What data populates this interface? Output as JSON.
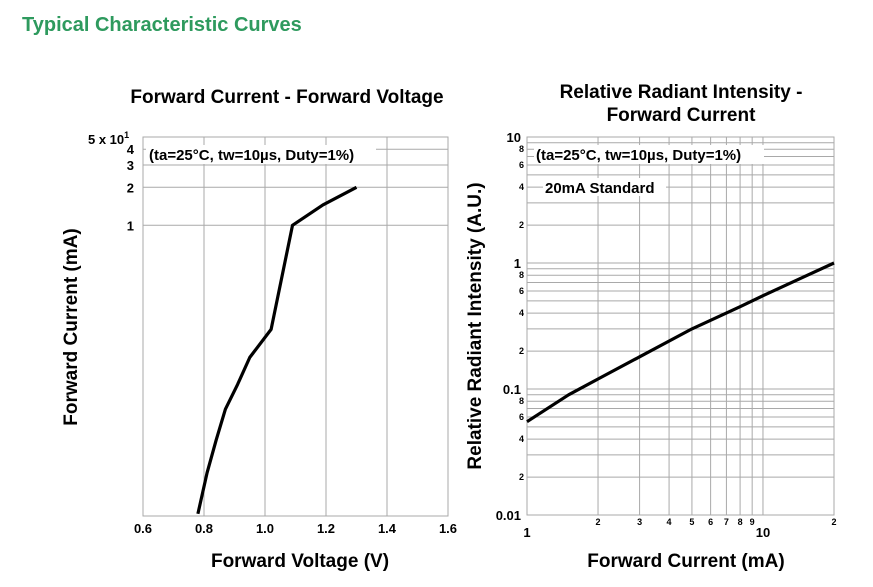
{
  "page": {
    "heading": "Typical Characteristic Curves",
    "heading_color": "#2e9a5e"
  },
  "chart_data": [
    {
      "type": "line",
      "title": "Forward Current - Forward Voltage",
      "xlabel": "Forward Voltage (V)",
      "ylabel": "Forward Current (mA)",
      "annotation": "(ta=25°C, tw=10µs, Duty=1%)",
      "xlim": [
        0.6,
        1.6
      ],
      "ylim": [
        0.05,
        50
      ],
      "y_scale": "log",
      "grid": true,
      "x_ticks": [
        "0.6",
        "0.8",
        "1.0",
        "1.2",
        "1.4",
        "1.6"
      ],
      "y_ticks": [
        "1",
        "2",
        "3",
        "4"
      ],
      "y_top_label": {
        "mantissa": "5 x 10",
        "exponent": "1"
      },
      "series": [
        {
          "x": [
            0.78,
            0.81,
            0.84,
            0.87,
            0.91,
            0.95,
            1.02,
            1.09,
            1.19,
            1.3
          ],
          "y": [
            0.052,
            0.11,
            0.2,
            0.35,
            0.55,
            0.9,
            1.5,
            10,
            14.5,
            20
          ]
        }
      ]
    },
    {
      "type": "line",
      "title_lines": [
        "Relative Radiant Intensity -",
        "Forward Current"
      ],
      "xlabel": "Forward Current (mA)",
      "ylabel": "Relative Radiant Intensity (A.U.)",
      "annotation": "(ta=25°C, tw=10µs, Duty=1%)",
      "annotation2": "20mA Standard",
      "x_scale": "log",
      "y_scale": "log",
      "xlim": [
        1,
        20
      ],
      "ylim": [
        0.01,
        10
      ],
      "grid": true,
      "x_ticks_major": [
        "1",
        "10"
      ],
      "x_ticks_minor": [
        "2",
        "3",
        "4",
        "5",
        "6",
        "7",
        "8",
        "9",
        "2"
      ],
      "y_ticks_major": [
        "0.01",
        "0.1",
        "1",
        "10"
      ],
      "y_ticks_minor": [
        "2",
        "4",
        "6",
        "8"
      ],
      "series": [
        {
          "x": [
            1,
            1.5,
            2,
            3,
            5,
            8,
            10,
            15,
            20
          ],
          "y": [
            0.055,
            0.09,
            0.12,
            0.18,
            0.3,
            0.45,
            0.55,
            0.78,
            1.0
          ]
        }
      ]
    }
  ]
}
